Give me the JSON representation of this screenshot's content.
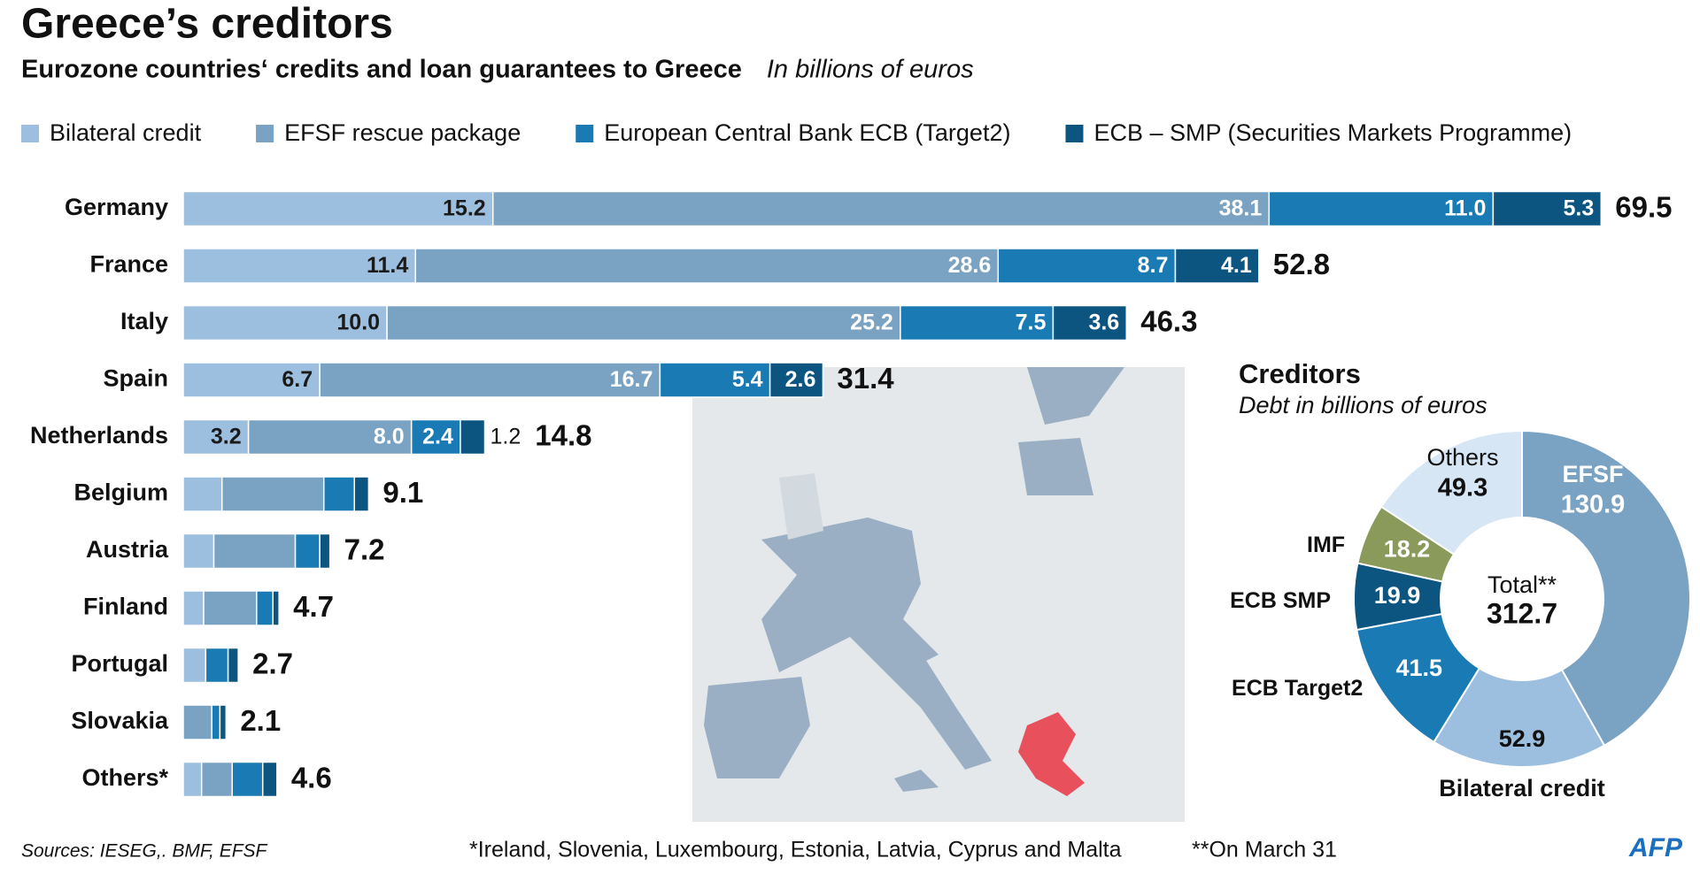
{
  "chart_data": [
    {
      "type": "bar",
      "orientation": "horizontal",
      "stacked": true,
      "title": "Greece’s creditors",
      "subtitle": "Eurozone countries‘ credits and loan guarantees to Greece",
      "unit_note": "In billions of euros",
      "categories": [
        "Germany",
        "France",
        "Italy",
        "Spain",
        "Netherlands",
        "Belgium",
        "Austria",
        "Finland",
        "Portugal",
        "Slovakia",
        "Others*"
      ],
      "series": [
        {
          "name": "Bilateral credit",
          "color": "#9dbfdf",
          "label_color": "#1a1a1a",
          "values": [
            15.2,
            11.4,
            10.0,
            6.7,
            3.2,
            1.9,
            1.5,
            1.0,
            1.1,
            0,
            0.9
          ],
          "value_labels": [
            "15.2",
            "11.4",
            "10.0",
            "6.7",
            "3.2",
            null,
            null,
            null,
            null,
            null,
            null
          ]
        },
        {
          "name": "EFSF rescue package",
          "color": "#7aa2c2",
          "label_color": "#ffffff",
          "values": [
            38.1,
            28.6,
            25.2,
            16.7,
            8.0,
            5.0,
            4.0,
            2.6,
            0,
            1.4,
            1.5
          ],
          "value_labels": [
            "38.1",
            "28.6",
            "25.2",
            "16.7",
            "8.0",
            null,
            null,
            null,
            null,
            null,
            null
          ]
        },
        {
          "name": "European Central Bank ECB  (Target2)",
          "color": "#1a7bb4",
          "label_color": "#ffffff",
          "values": [
            11.0,
            8.7,
            7.5,
            5.4,
            2.4,
            1.5,
            1.2,
            0.8,
            1.1,
            0.4,
            1.5
          ],
          "value_labels": [
            "11.0",
            "8.7",
            "7.5",
            "5.4",
            "2.4",
            null,
            null,
            null,
            null,
            null,
            null
          ]
        },
        {
          "name": "ECB – SMP (Securities Markets Programme)",
          "color": "#0c5581",
          "label_color": "#ffffff",
          "values": [
            5.3,
            4.1,
            3.6,
            2.6,
            1.2,
            0.7,
            0.5,
            0.3,
            0.5,
            0.3,
            0.7
          ],
          "value_labels": [
            "5.3",
            "4.1",
            "3.6",
            "2.6",
            "1.2",
            null,
            null,
            null,
            null,
            null,
            null
          ]
        }
      ],
      "totals": [
        69.5,
        52.8,
        46.3,
        31.4,
        14.8,
        9.1,
        7.2,
        4.7,
        2.7,
        2.1,
        4.6
      ]
    },
    {
      "type": "pie",
      "hole": true,
      "title": "Creditors",
      "subtitle": "Debt in billions of euros",
      "categories": [
        "EFSF",
        "Bilateral credit",
        "ECB Target2",
        "ECB SMP",
        "IMF",
        "Others"
      ],
      "values": [
        130.9,
        52.9,
        41.5,
        19.9,
        18.2,
        49.3
      ],
      "colors": [
        "#7aa2c2",
        "#9dbfdf",
        "#1a7bb4",
        "#0c5581",
        "#8a9a5b",
        "#d6e6f4"
      ],
      "center_label": "Total**",
      "center_value": 312.7
    }
  ],
  "footer": {
    "sources": "Sources: IESEG,. BMF, EFSF",
    "note": "*Ireland, Slovenia, Luxembourg, Estonia, Latvia, Cyprus and Malta",
    "note2": "**On March 31",
    "logo": "AFP"
  }
}
